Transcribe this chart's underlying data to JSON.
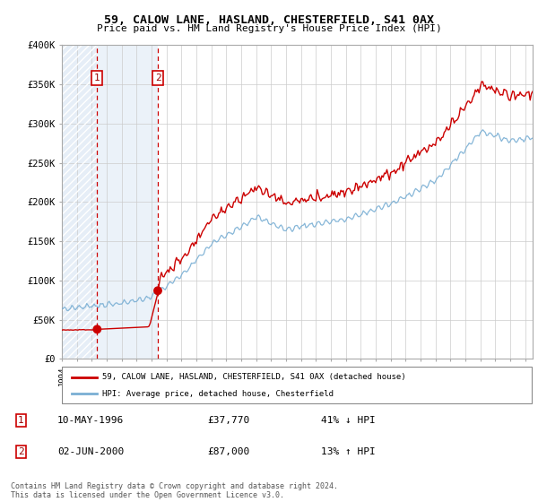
{
  "title": "59, CALOW LANE, HASLAND, CHESTERFIELD, S41 0AX",
  "subtitle": "Price paid vs. HM Land Registry's House Price Index (HPI)",
  "legend_line1": "59, CALOW LANE, HASLAND, CHESTERFIELD, S41 0AX (detached house)",
  "legend_line2": "HPI: Average price, detached house, Chesterfield",
  "sale1_date": "10-MAY-1996",
  "sale1_price": "£37,770",
  "sale1_hpi": "41% ↓ HPI",
  "sale2_date": "02-JUN-2000",
  "sale2_price": "£87,000",
  "sale2_hpi": "13% ↑ HPI",
  "sale1_year": 1996.36,
  "sale1_value": 37770,
  "sale2_year": 2000.42,
  "sale2_value": 87000,
  "ylim": [
    0,
    400000
  ],
  "xlim_start": 1994.0,
  "xlim_end": 2025.5,
  "line_color_property": "#cc0000",
  "line_color_hpi": "#7aafd4",
  "marker_color": "#cc0000",
  "dashed_color": "#cc0000",
  "hatch_color": "#dce8f5",
  "solid_bg_color": "#dce8f5",
  "grid_color": "#cccccc",
  "footer": "Contains HM Land Registry data © Crown copyright and database right 2024.\nThis data is licensed under the Open Government Licence v3.0."
}
